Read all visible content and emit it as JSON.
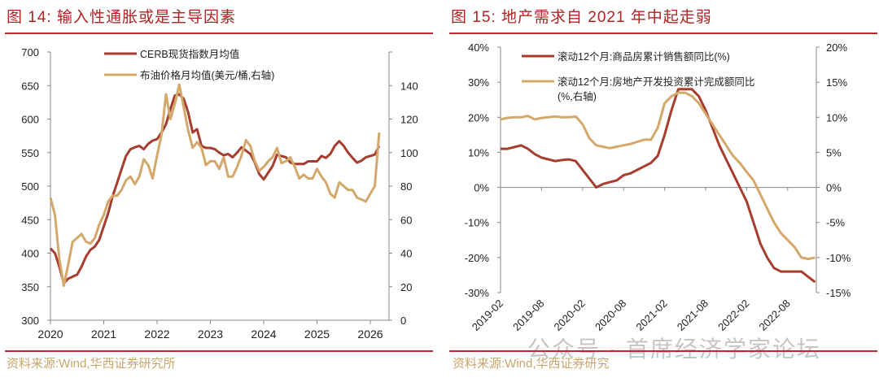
{
  "left": {
    "title": "图 14:  输入性通胀或是主导因素",
    "source": "资料来源:Wind,华西证券研究所"
  },
  "right": {
    "title": "图 15:  地产需求自 2021 年中起走弱",
    "source": "资料来源:Wind,华西证券研究"
  },
  "watermark": "公众号 · 首席经济学家论坛",
  "chart_data": [
    {
      "type": "line",
      "title": "输入性通胀或是主导因素",
      "x_start": "2020-01",
      "frequency": "monthly",
      "xticks": [
        "2020",
        "2021",
        "2022",
        "2023",
        "2024",
        "2025",
        "2026"
      ],
      "ylim": [
        300,
        700
      ],
      "yticks": [
        "300",
        "350",
        "400",
        "450",
        "500",
        "550",
        "600",
        "650",
        "700"
      ],
      "y2lim": [
        0,
        140
      ],
      "y2ticks": [
        "0",
        "20",
        "40",
        "60",
        "80",
        "100",
        "120",
        "140"
      ],
      "legend_position": "top-center",
      "series": [
        {
          "name": "CERB现货指数月均值",
          "axis": "left",
          "color": "#a63d2e",
          "values": [
            407,
            400,
            380,
            355,
            362,
            365,
            368,
            380,
            395,
            405,
            410,
            420,
            440,
            460,
            485,
            505,
            525,
            545,
            555,
            558,
            560,
            555,
            563,
            568,
            570,
            580,
            592,
            615,
            635,
            637,
            630,
            610,
            580,
            585,
            560,
            557,
            557,
            555,
            550,
            546,
            548,
            543,
            550,
            558,
            553,
            548,
            535,
            518,
            510,
            520,
            530,
            547,
            545,
            543,
            535,
            533,
            533,
            533,
            537,
            537,
            537,
            545,
            542,
            548,
            560,
            567,
            560,
            550,
            542,
            535,
            538,
            543,
            545,
            547,
            560
          ]
        },
        {
          "name": "布油价格月均值(美元/桶,右轴)",
          "axis": "right",
          "color": "#d4a86a",
          "values": [
            64,
            55,
            32,
            18,
            29,
            41,
            43,
            45,
            41,
            40,
            43,
            50,
            55,
            62,
            65,
            65,
            68,
            73,
            75,
            71,
            75,
            84,
            81,
            74,
            86,
            97,
            118,
            105,
            113,
            123,
            111,
            99,
            90,
            93,
            90,
            81,
            83,
            83,
            79,
            85,
            75,
            75,
            80,
            86,
            94,
            91,
            83,
            78,
            80,
            83,
            85,
            90,
            82,
            83,
            85,
            80,
            74,
            76,
            74,
            74,
            79,
            75,
            72,
            66,
            64,
            72,
            70,
            68,
            68,
            64,
            63,
            62,
            66,
            70,
            98
          ]
        }
      ]
    },
    {
      "type": "line",
      "title": "地产需求自2021年中起走弱",
      "x_start": "2019-02",
      "frequency": "monthly",
      "xticks": [
        "2019-02",
        "2019-08",
        "2020-02",
        "2020-08",
        "2021-02",
        "2021-08",
        "2022-02",
        "2022-08"
      ],
      "ylim": [
        -30,
        40
      ],
      "yticks": [
        "-30%",
        "-20%",
        "-10%",
        "0%",
        "10%",
        "20%",
        "30%",
        "40%"
      ],
      "y2lim": [
        -15,
        20
      ],
      "y2ticks": [
        "-15%",
        "-10%",
        "-5%",
        "0%",
        "5%",
        "10%",
        "15%",
        "20%"
      ],
      "legend_position": "top-left",
      "series": [
        {
          "name": "滚动12个月:商品房累计销售额同比(%)",
          "axis": "left",
          "color": "#a63d2e",
          "values": [
            11,
            11,
            11.5,
            12,
            11,
            9.5,
            8.5,
            8,
            7.5,
            7.8,
            8,
            7.5,
            5,
            2.5,
            0,
            1,
            1.5,
            2,
            3.5,
            4,
            5,
            6,
            7,
            9,
            15,
            22,
            28,
            28,
            28,
            26,
            22,
            17,
            12,
            8,
            4,
            0,
            -4,
            -10,
            -16,
            -20,
            -23,
            -24,
            -24,
            -24,
            -24,
            -25.5,
            -27
          ]
        },
        {
          "name": "滚动12个月:房地产开发投资累计完成额同比",
          "name2": "(%,右轴)",
          "axis": "right",
          "color": "#d4a86a",
          "values": [
            9.7,
            9.9,
            10,
            10,
            10.2,
            9.7,
            9.9,
            10,
            10.1,
            10,
            10,
            10.1,
            9,
            7,
            6,
            5.8,
            5.6,
            5.8,
            6,
            6.2,
            6.5,
            6.8,
            6.8,
            8.5,
            12,
            13,
            13.5,
            13.5,
            13,
            12,
            10.5,
            9,
            7.5,
            6,
            4.5,
            3.5,
            2.2,
            1,
            -1,
            -3,
            -5,
            -6.5,
            -7.5,
            -8.5,
            -10,
            -10.2,
            -10
          ]
        }
      ]
    }
  ]
}
